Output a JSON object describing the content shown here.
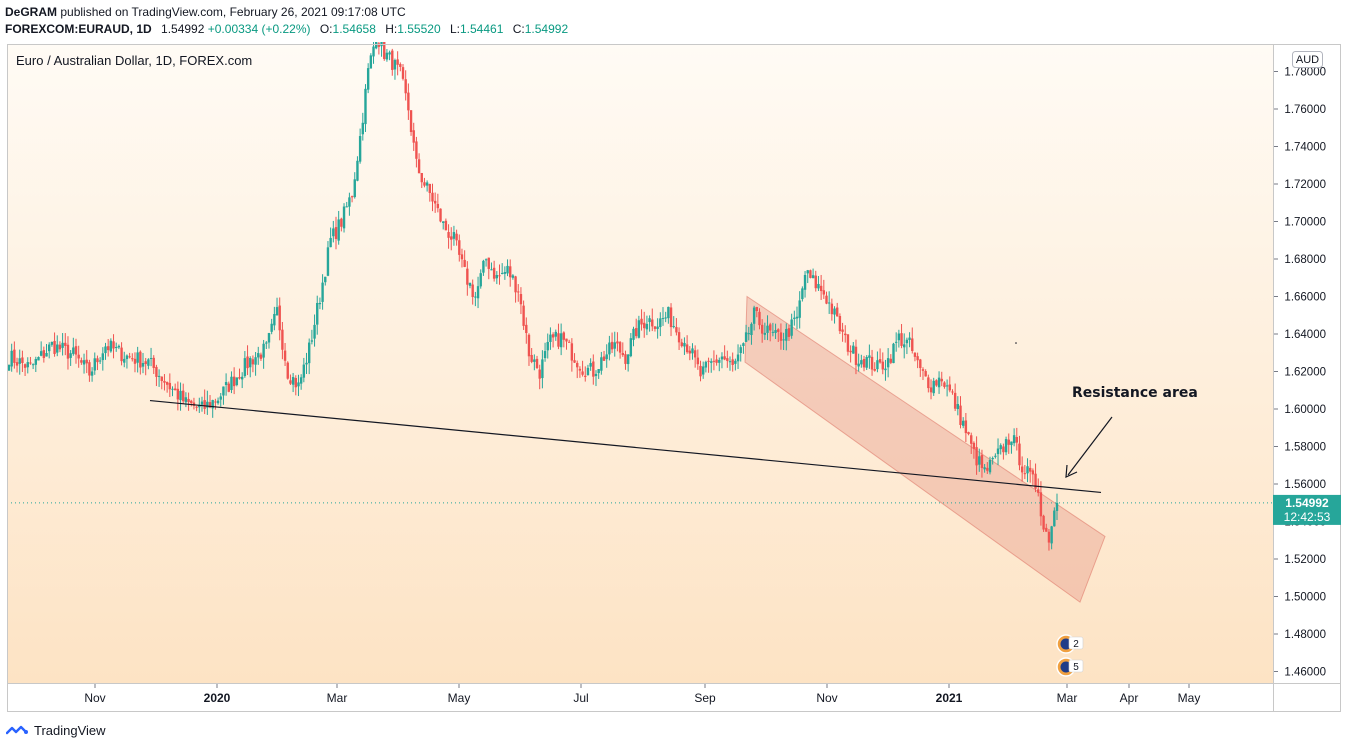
{
  "header": {
    "author": "DeGRAM",
    "published_text": "published on TradingView.com, February 26, 2021 09:17:08 UTC",
    "symbol": "FOREXCOM:EURAUD, 1D",
    "last": "1.54992",
    "change": "+0.00334 (+0.22%)",
    "open_label": "O:",
    "open": "1.54658",
    "high_label": "H:",
    "high": "1.55520",
    "low_label": "L:",
    "low": "1.54461",
    "close_label": "C:",
    "close": "1.54992"
  },
  "footer": {
    "brand": "TradingView"
  },
  "chart_data": {
    "type": "candlestick",
    "title": "Euro / Australian Dollar, 1D, FOREX.com",
    "currency_label": "AUD",
    "ylim": [
      1.45,
      1.785
    ],
    "y_ticks": [
      "1.78000",
      "1.76000",
      "1.74000",
      "1.72000",
      "1.70000",
      "1.68000",
      "1.66000",
      "1.64000",
      "1.62000",
      "1.60000",
      "1.58000",
      "1.56000",
      "1.54000",
      "1.52000",
      "1.50000",
      "1.48000",
      "1.46000"
    ],
    "x_ticks": [
      "Nov",
      "2020",
      "Mar",
      "May",
      "Jul",
      "Sep",
      "Nov",
      "2021",
      "Mar",
      "Apr",
      "May"
    ],
    "last_price": 1.54992,
    "last_price_label": "1.54992",
    "countdown": "12:42:53",
    "annotation": "Resistance area",
    "event_badges": [
      "2",
      "5"
    ],
    "colors": {
      "up": "#26a69a",
      "down": "#ef5350",
      "channel": "#e89a8a",
      "bg_top": "#fffbf5",
      "bg_bottom": "#fde3c4"
    },
    "trendline": {
      "from": {
        "date": "2019-11-10",
        "price": 1.6045
      },
      "to": {
        "date": "2021-03-20",
        "price": 1.5555
      }
    },
    "channel": {
      "upper": [
        {
          "date": "2020-09-22",
          "price": 1.66
        },
        {
          "date": "2021-03-20",
          "price": 1.532
        }
      ],
      "width": 0.035
    },
    "anchors": [
      {
        "i": 0,
        "p": 1.628
      },
      {
        "i": 8,
        "p": 1.622
      },
      {
        "i": 16,
        "p": 1.634
      },
      {
        "i": 24,
        "p": 1.629
      },
      {
        "i": 30,
        "p": 1.619
      },
      {
        "i": 36,
        "p": 1.634
      },
      {
        "i": 44,
        "p": 1.628
      },
      {
        "i": 52,
        "p": 1.625
      },
      {
        "i": 60,
        "p": 1.612
      },
      {
        "i": 66,
        "p": 1.603
      },
      {
        "i": 72,
        "p": 1.6
      },
      {
        "i": 78,
        "p": 1.606
      },
      {
        "i": 84,
        "p": 1.616
      },
      {
        "i": 90,
        "p": 1.626
      },
      {
        "i": 96,
        "p": 1.632
      },
      {
        "i": 100,
        "p": 1.652
      },
      {
        "i": 104,
        "p": 1.62
      },
      {
        "i": 108,
        "p": 1.612
      },
      {
        "i": 112,
        "p": 1.632
      },
      {
        "i": 116,
        "p": 1.66
      },
      {
        "i": 120,
        "p": 1.69
      },
      {
        "i": 124,
        "p": 1.7
      },
      {
        "i": 128,
        "p": 1.715
      },
      {
        "i": 131,
        "p": 1.745
      },
      {
        "i": 134,
        "p": 1.78
      },
      {
        "i": 137,
        "p": 1.8
      },
      {
        "i": 140,
        "p": 1.79
      },
      {
        "i": 143,
        "p": 1.785
      },
      {
        "i": 146,
        "p": 1.778
      },
      {
        "i": 149,
        "p": 1.76
      },
      {
        "i": 152,
        "p": 1.73
      },
      {
        "i": 155,
        "p": 1.72
      },
      {
        "i": 158,
        "p": 1.712
      },
      {
        "i": 162,
        "p": 1.698
      },
      {
        "i": 166,
        "p": 1.69
      },
      {
        "i": 170,
        "p": 1.672
      },
      {
        "i": 174,
        "p": 1.66
      },
      {
        "i": 178,
        "p": 1.68
      },
      {
        "i": 182,
        "p": 1.67
      },
      {
        "i": 186,
        "p": 1.674
      },
      {
        "i": 190,
        "p": 1.664
      },
      {
        "i": 194,
        "p": 1.63
      },
      {
        "i": 198,
        "p": 1.62
      },
      {
        "i": 202,
        "p": 1.636
      },
      {
        "i": 206,
        "p": 1.638
      },
      {
        "i": 210,
        "p": 1.63
      },
      {
        "i": 214,
        "p": 1.622
      },
      {
        "i": 218,
        "p": 1.62
      },
      {
        "i": 222,
        "p": 1.628
      },
      {
        "i": 226,
        "p": 1.634
      },
      {
        "i": 230,
        "p": 1.628
      },
      {
        "i": 234,
        "p": 1.642
      },
      {
        "i": 238,
        "p": 1.648
      },
      {
        "i": 242,
        "p": 1.646
      },
      {
        "i": 246,
        "p": 1.65
      },
      {
        "i": 250,
        "p": 1.64
      },
      {
        "i": 254,
        "p": 1.632
      },
      {
        "i": 258,
        "p": 1.618
      },
      {
        "i": 262,
        "p": 1.624
      },
      {
        "i": 266,
        "p": 1.628
      },
      {
        "i": 270,
        "p": 1.622
      },
      {
        "i": 274,
        "p": 1.632
      },
      {
        "i": 278,
        "p": 1.65
      },
      {
        "i": 282,
        "p": 1.642
      },
      {
        "i": 286,
        "p": 1.638
      },
      {
        "i": 290,
        "p": 1.64
      },
      {
        "i": 294,
        "p": 1.648
      },
      {
        "i": 297,
        "p": 1.672
      },
      {
        "i": 300,
        "p": 1.668
      },
      {
        "i": 304,
        "p": 1.662
      },
      {
        "i": 308,
        "p": 1.65
      },
      {
        "i": 312,
        "p": 1.636
      },
      {
        "i": 316,
        "p": 1.628
      },
      {
        "i": 320,
        "p": 1.626
      },
      {
        "i": 324,
        "p": 1.622
      },
      {
        "i": 328,
        "p": 1.626
      },
      {
        "i": 332,
        "p": 1.638
      },
      {
        "i": 336,
        "p": 1.634
      },
      {
        "i": 340,
        "p": 1.62
      },
      {
        "i": 344,
        "p": 1.613
      },
      {
        "i": 348,
        "p": 1.617
      },
      {
        "i": 352,
        "p": 1.606
      },
      {
        "i": 356,
        "p": 1.592
      },
      {
        "i": 360,
        "p": 1.576
      },
      {
        "i": 364,
        "p": 1.566
      },
      {
        "i": 368,
        "p": 1.573
      },
      {
        "i": 372,
        "p": 1.582
      },
      {
        "i": 374,
        "p": 1.586
      },
      {
        "i": 378,
        "p": 1.57
      },
      {
        "i": 382,
        "p": 1.561
      },
      {
        "i": 384,
        "p": 1.558
      },
      {
        "i": 386,
        "p": 1.536
      },
      {
        "i": 388,
        "p": 1.532
      },
      {
        "i": 390,
        "p": 1.546
      },
      {
        "i": 391,
        "p": 1.55
      }
    ]
  }
}
